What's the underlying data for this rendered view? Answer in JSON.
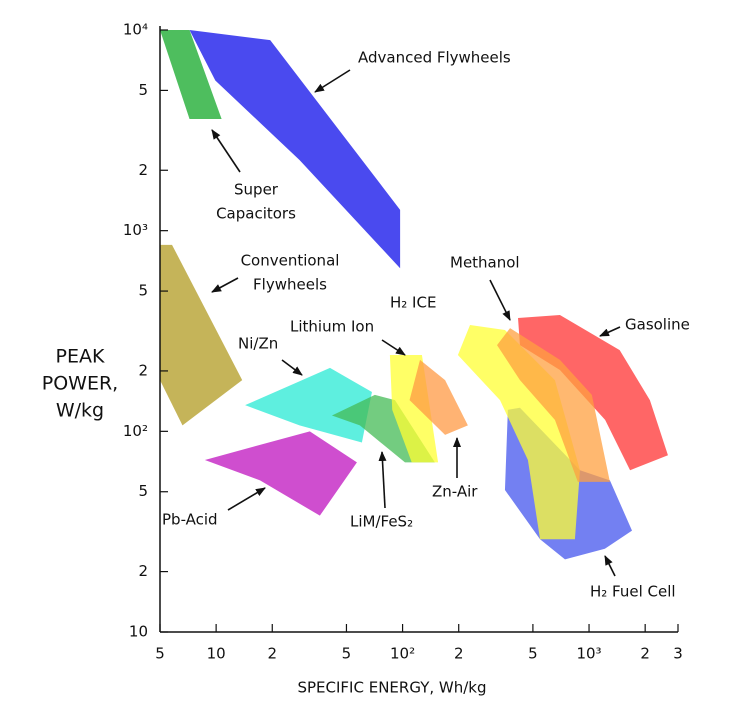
{
  "chart_data": {
    "type": "region",
    "xlabel": "SPECIFIC ENERGY, Wh/kg",
    "ylabel": [
      "PEAK",
      "POWER,",
      "W/kg"
    ],
    "xscale": "log",
    "yscale": "log",
    "xlim": [
      5,
      3000
    ],
    "ylim": [
      10,
      10000
    ],
    "xticks": [
      5,
      {
        "value": 10,
        "label": "10"
      },
      {
        "value": 20,
        "label": "2"
      },
      {
        "value": 50,
        "label": "5"
      },
      {
        "value": 100,
        "label": "10²"
      },
      {
        "value": 200,
        "label": "2"
      },
      {
        "value": 500,
        "label": "5"
      },
      {
        "value": 1000,
        "label": "10³"
      },
      {
        "value": 2000,
        "label": "2"
      },
      {
        "value": 3000,
        "label": "3"
      }
    ],
    "yticks": [
      10,
      {
        "value": 20,
        "label": "2"
      },
      {
        "value": 50,
        "label": "5"
      },
      {
        "value": 100,
        "label": "10²"
      },
      {
        "value": 200,
        "label": "2"
      },
      {
        "value": 500,
        "label": "5"
      },
      {
        "value": 1000,
        "label": "10³"
      },
      {
        "value": 2000,
        "label": "2"
      },
      {
        "value": 5000,
        "label": "5"
      },
      {
        "value": 10000,
        "label": "10⁴"
      }
    ],
    "annotations": [
      "H₂ ICE"
    ],
    "regions": [
      {
        "label": [
          "Advanced Flywheels"
        ],
        "color": "#4040ee",
        "x": [
          7.2,
          19.5,
          97,
          97,
          28,
          9.9
        ],
        "y": [
          10000,
          8900,
          1270,
          650,
          2250,
          5600
        ]
      },
      {
        "label": [
          "Super",
          "Capacitors"
        ],
        "color": "#44bb55",
        "x": [
          5,
          7.2,
          10.7,
          7.2
        ],
        "y": [
          10000,
          10000,
          3600,
          3600
        ]
      },
      {
        "label": [
          "Conventional",
          "Flywheels"
        ],
        "color": "#c2b050",
        "x": [
          5,
          5.8,
          13.8,
          6.6,
          5
        ],
        "y": [
          850,
          850,
          180,
          107,
          180
        ]
      },
      {
        "label": [
          "Ni/Zn"
        ],
        "color": "#55eedd",
        "x": [
          14.3,
          40.8,
          68.5,
          60.5,
          28
        ],
        "y": [
          135,
          207,
          157,
          88,
          107
        ]
      },
      {
        "label": [
          "Pb-Acid"
        ],
        "color": "#cc44cc",
        "x": [
          8.7,
          31.8,
          56.9,
          36,
          17.2
        ],
        "y": [
          72,
          100,
          70,
          38,
          57
        ]
      },
      {
        "label": [
          "LiM/FeS₂"
        ],
        "color": "#44bb55",
        "x": [
          41.8,
          71,
          91,
          149,
          103,
          59
        ],
        "y": [
          120,
          152,
          143,
          70,
          70,
          107
        ]
      },
      {
        "label": [
          "Lithium Ion"
        ],
        "color": "#ffff33",
        "x": [
          85.5,
          127,
          155,
          112,
          88
        ],
        "y": [
          240,
          240,
          70,
          70,
          128
        ]
      },
      {
        "label": [
          "Zn-Air"
        ],
        "color": "#ff9944",
        "x": [
          124,
          169,
          224,
          169,
          109
        ],
        "y": [
          227,
          180,
          107,
          96,
          143
        ]
      },
      {
        "label": [
          "H₂ Fuel Cell"
        ],
        "color": "#4455ee",
        "x": [
          367,
          426,
          894,
          1294,
          1700,
          1216,
          743,
          546,
          354
        ],
        "y": [
          128,
          131,
          64,
          57,
          32,
          26,
          23,
          29,
          51
        ]
      },
      {
        "label": [
          "Gasoline"
        ],
        "color": "#ff3333",
        "x": [
          416,
          698,
          1460,
          2120,
          2650,
          1660,
          1220,
          698,
          426
        ],
        "y": [
          367,
          380,
          254,
          143,
          76,
          64,
          114,
          202,
          269
        ]
      },
      {
        "label": [
          "Methanol"
        ],
        "color": "#ffff33",
        "x": [
          198,
          230,
          354,
          656,
          894,
          840,
          546,
          470,
          333
        ],
        "y": [
          240,
          339,
          320,
          180,
          64,
          29,
          29,
          72,
          143
        ]
      },
      {
        "color": "#ffa040",
        "x": [
          321,
          377,
          698,
          1035,
          1294,
          871,
          656,
          426
        ],
        "y": [
          269,
          327,
          227,
          152,
          56,
          56,
          114,
          180
        ]
      }
    ]
  }
}
